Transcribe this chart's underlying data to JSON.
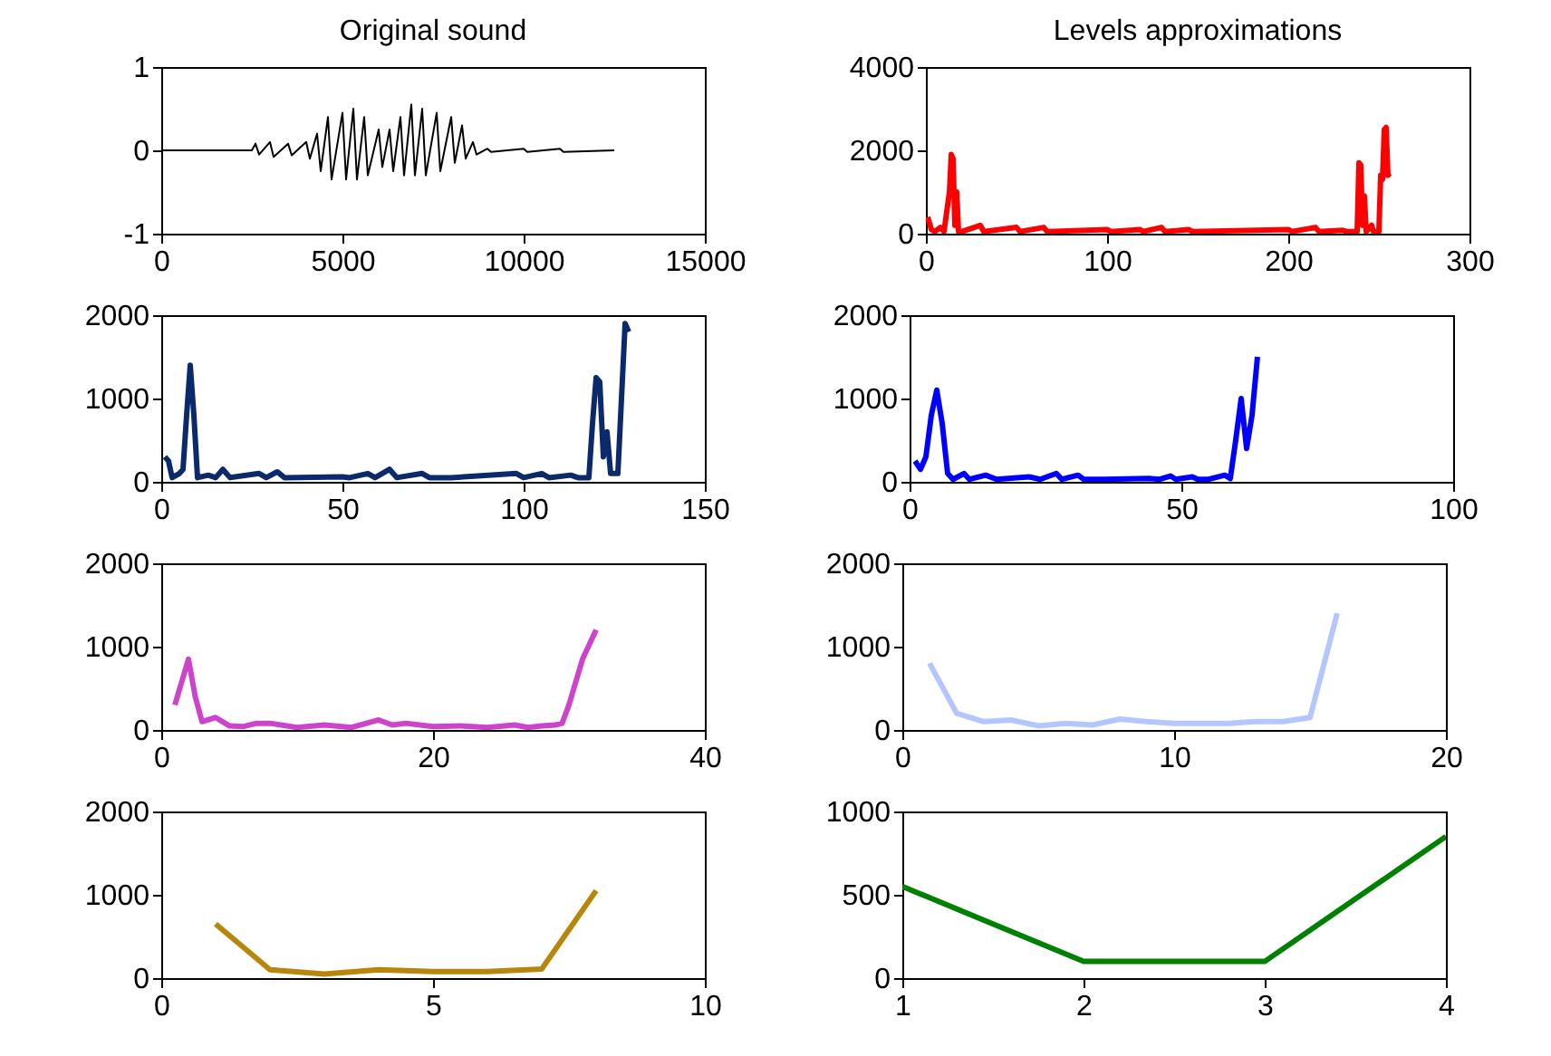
{
  "chart_data": [
    {
      "type": "line",
      "title": "Original sound",
      "xlim": [
        0,
        15000
      ],
      "xticks": [
        0,
        5000,
        10000,
        15000
      ],
      "ylim": [
        -1,
        1
      ],
      "yticks": [
        -1,
        0,
        1
      ],
      "x": [
        0,
        2500,
        2600,
        2700,
        3000,
        3100,
        3500,
        3600,
        4000,
        4100,
        4300,
        4400,
        4600,
        4700,
        5000,
        5100,
        5300,
        5400,
        5600,
        5700,
        6000,
        6100,
        6300,
        6400,
        6600,
        6700,
        6900,
        7000,
        7200,
        7300,
        7600,
        7700,
        8000,
        8100,
        8300,
        8400,
        8600,
        8700,
        9000,
        9100,
        10000,
        10100,
        11000,
        11100,
        12500
      ],
      "series": [
        {
          "color": "#000000",
          "values": [
            0,
            0,
            0.08,
            -0.05,
            0.1,
            -0.08,
            0.08,
            -0.06,
            0.1,
            -0.1,
            0.2,
            -0.25,
            0.4,
            -0.35,
            0.45,
            -0.35,
            0.5,
            -0.35,
            0.4,
            -0.3,
            0.25,
            -0.2,
            0.25,
            -0.25,
            0.4,
            -0.3,
            0.55,
            -0.3,
            0.5,
            -0.3,
            0.45,
            -0.25,
            0.4,
            -0.15,
            0.3,
            -0.1,
            0.1,
            -0.05,
            0.02,
            -0.02,
            0.02,
            -0.02,
            0.02,
            -0.02,
            0
          ]
        }
      ]
    },
    {
      "type": "line",
      "title": "Levels approximations",
      "xlim": [
        0,
        300
      ],
      "xticks": [
        0,
        100,
        200,
        300
      ],
      "ylim": [
        0,
        4000
      ],
      "yticks": [
        0,
        2000,
        4000
      ],
      "x": [
        1,
        3,
        5,
        8,
        10,
        13,
        14,
        15,
        16,
        17,
        18,
        20,
        30,
        32,
        50,
        52,
        65,
        67,
        100,
        102,
        118,
        120,
        130,
        132,
        145,
        147,
        200,
        202,
        215,
        217,
        230,
        232,
        238,
        239,
        240,
        241,
        242,
        243,
        246,
        247,
        250,
        251,
        252,
        253,
        254,
        255,
        256
      ],
      "series": [
        {
          "color": "#ff0000",
          "values": [
            400,
            100,
            50,
            150,
            50,
            1000,
            1900,
            1800,
            200,
            1000,
            50,
            50,
            200,
            50,
            150,
            50,
            150,
            50,
            100,
            50,
            100,
            50,
            150,
            50,
            100,
            50,
            100,
            50,
            150,
            50,
            80,
            50,
            50,
            1700,
            1650,
            200,
            900,
            50,
            200,
            50,
            50,
            1400,
            1300,
            2500,
            2550,
            1400,
            1450
          ]
        }
      ]
    },
    {
      "type": "line",
      "xlim": [
        0,
        150
      ],
      "xticks": [
        0,
        50,
        100,
        150
      ],
      "ylim": [
        0,
        2000
      ],
      "yticks": [
        0,
        1000,
        2000
      ],
      "x": [
        1,
        2,
        3,
        5,
        6,
        7,
        8,
        9,
        10,
        13,
        15,
        17,
        19,
        27,
        29,
        32,
        34,
        50,
        52,
        57,
        59,
        63,
        65,
        72,
        74,
        80,
        98,
        100,
        105,
        107,
        113,
        115,
        118,
        119,
        120,
        121,
        122,
        123,
        124,
        126,
        127,
        128,
        129
      ],
      "series": [
        {
          "color": "#0b2a6b",
          "values": [
            300,
            250,
            50,
            100,
            150,
            800,
            1400,
            800,
            50,
            80,
            50,
            150,
            50,
            100,
            50,
            120,
            50,
            60,
            50,
            100,
            50,
            150,
            50,
            100,
            50,
            50,
            100,
            50,
            100,
            50,
            80,
            50,
            50,
            700,
            1250,
            1200,
            300,
            600,
            100,
            100,
            1000,
            1900,
            1800
          ]
        }
      ]
    },
    {
      "type": "line",
      "xlim": [
        0,
        100
      ],
      "xticks": [
        0,
        50,
        100
      ],
      "ylim": [
        0,
        2000
      ],
      "yticks": [
        0,
        1000,
        2000
      ],
      "x": [
        1,
        2,
        3,
        4,
        5,
        6,
        7,
        8,
        10,
        11,
        14,
        16,
        22,
        24,
        27,
        28,
        31,
        32,
        36,
        44,
        46,
        48,
        49,
        52,
        53,
        55,
        58,
        59,
        60,
        61,
        62,
        63,
        64
      ],
      "series": [
        {
          "color": "#0000ff",
          "values": [
            250,
            150,
            300,
            800,
            1100,
            700,
            100,
            30,
            100,
            30,
            80,
            30,
            60,
            30,
            100,
            30,
            80,
            30,
            30,
            40,
            30,
            70,
            30,
            60,
            30,
            30,
            80,
            40,
            500,
            1000,
            400,
            800,
            1500
          ]
        }
      ]
    },
    {
      "type": "line",
      "xlim": [
        0,
        40
      ],
      "xticks": [
        0,
        20,
        40
      ],
      "ylim": [
        0,
        2000
      ],
      "yticks": [
        0,
        1000,
        2000
      ],
      "x": [
        1,
        2,
        2.5,
        3,
        4,
        5,
        6,
        7,
        8,
        10,
        12,
        14,
        16,
        17,
        18,
        20,
        22,
        24,
        26,
        27,
        28,
        29,
        29.5,
        30,
        31,
        32
      ],
      "series": [
        {
          "color": "#cc44cc",
          "values": [
            300,
            850,
            400,
            100,
            150,
            50,
            40,
            80,
            80,
            30,
            60,
            30,
            120,
            60,
            80,
            40,
            50,
            30,
            60,
            30,
            50,
            60,
            80,
            300,
            850,
            1200
          ]
        }
      ]
    },
    {
      "type": "line",
      "xlim": [
        0,
        20
      ],
      "xticks": [
        0,
        10,
        20
      ],
      "ylim": [
        0,
        2000
      ],
      "yticks": [
        0,
        1000,
        2000
      ],
      "x": [
        1,
        2,
        3,
        4,
        5,
        6,
        7,
        8,
        9,
        10,
        11,
        12,
        13,
        14,
        15,
        16
      ],
      "series": [
        {
          "color": "#b3c6ff",
          "values": [
            800,
            200,
            100,
            120,
            50,
            80,
            60,
            130,
            100,
            80,
            80,
            80,
            100,
            100,
            150,
            1400
          ]
        }
      ]
    },
    {
      "type": "line",
      "xlim": [
        0,
        10
      ],
      "xticks": [
        0,
        5,
        10
      ],
      "ylim": [
        0,
        2000
      ],
      "yticks": [
        0,
        1000,
        2000
      ],
      "x": [
        1,
        2,
        3,
        4,
        5,
        6,
        7,
        8
      ],
      "series": [
        {
          "color": "#b8860b",
          "values": [
            650,
            100,
            50,
            100,
            80,
            80,
            110,
            1050
          ]
        }
      ]
    },
    {
      "type": "line",
      "xlim": [
        1,
        4
      ],
      "xticks": [
        1,
        2,
        3,
        4
      ],
      "ylim": [
        0,
        1000
      ],
      "yticks": [
        0,
        500,
        1000
      ],
      "x": [
        1,
        2,
        3,
        4
      ],
      "series": [
        {
          "color": "#008000",
          "values": [
            550,
            100,
            100,
            850
          ]
        }
      ]
    }
  ]
}
